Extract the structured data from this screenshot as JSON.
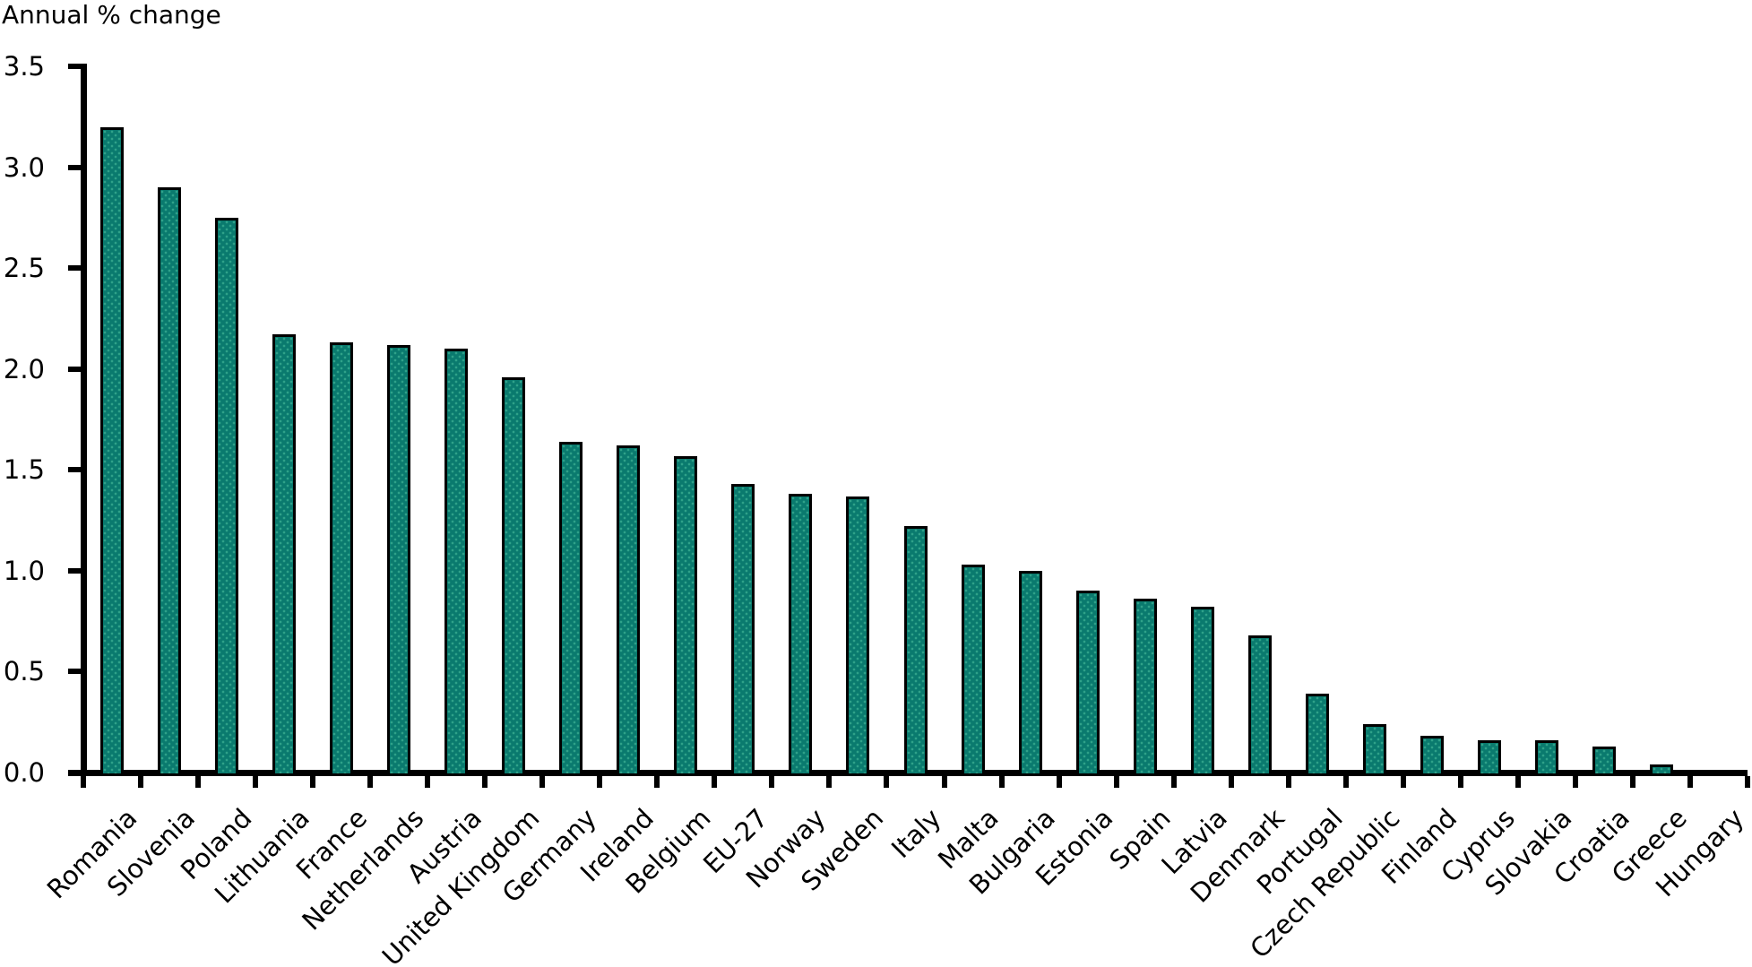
{
  "title": "Annual % change",
  "chart_data": {
    "type": "bar",
    "title": "Annual % change",
    "xlabel": "",
    "ylabel": "Annual % change",
    "ylim": [
      0,
      3.5
    ],
    "y_tick_step": 0.5,
    "y_ticks": [
      "0.0",
      "0.5",
      "1.0",
      "1.5",
      "2.0",
      "2.5",
      "3.0",
      "3.5"
    ],
    "grid": false,
    "legend_position": "none",
    "bar_fill_color": "#0a7a6e",
    "bar_dot_color": "#2fa189",
    "bar_border_color": "#000000",
    "axis_color": "#000000",
    "categories": [
      "Romania",
      "Slovenia",
      "Poland",
      "Lithuania",
      "France",
      "Netherlands",
      "Austria",
      "United Kingdom",
      "Germany",
      "Ireland",
      "Belgium",
      "EU-27",
      "Norway",
      "Sweden",
      "Italy",
      "Malta",
      "Bulgaria",
      "Estonia",
      "Spain",
      "Latvia",
      "Denmark",
      "Portugal",
      "Czech Republic",
      "Finland",
      "Cyprus",
      "Slovakia",
      "Croatia",
      "Greece",
      "Hungary"
    ],
    "values": [
      3.2,
      2.9,
      2.75,
      2.17,
      2.13,
      2.12,
      2.1,
      1.96,
      1.64,
      1.62,
      1.57,
      1.43,
      1.38,
      1.37,
      1.22,
      1.03,
      1.0,
      0.9,
      0.86,
      0.82,
      0.68,
      0.39,
      0.24,
      0.18,
      0.16,
      0.16,
      0.13,
      0.04,
      0.0
    ]
  }
}
